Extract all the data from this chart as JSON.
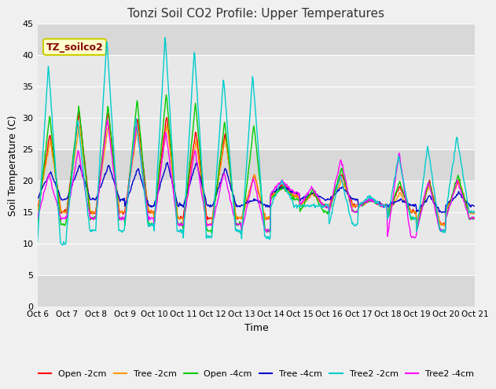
{
  "title": "Tonzi Soil CO2 Profile: Upper Temperatures",
  "xlabel": "Time",
  "ylabel": "Soil Temperature (C)",
  "ylim": [
    0,
    45
  ],
  "yticks": [
    0,
    5,
    10,
    15,
    20,
    25,
    30,
    35,
    40,
    45
  ],
  "xlim": [
    0,
    15
  ],
  "xtick_labels": [
    "Oct 6",
    "Oct 7",
    "Oct 8",
    "Oct 9",
    "Oct 10",
    "Oct 11",
    "Oct 12",
    "Oct 13",
    "Oct 14",
    "Oct 15",
    "Oct 16",
    "Oct 17",
    "Oct 18",
    "Oct 19",
    "Oct 20",
    "Oct 21"
  ],
  "series_names": [
    "Open -2cm",
    "Tree -2cm",
    "Open -4cm",
    "Tree -4cm",
    "Tree2 -2cm",
    "Tree2 -4cm"
  ],
  "series_colors": [
    "#ff0000",
    "#ff9900",
    "#00cc00",
    "#0000cc",
    "#00cccc",
    "#ff00ff"
  ],
  "annotation_text": "TZ_soilco2",
  "annotation_bg": "#ffffcc",
  "annotation_border": "#cccc00",
  "fig_bg": "#f0f0f0",
  "plot_bg": "#e8e8e8",
  "grid_color": "#ffffff"
}
